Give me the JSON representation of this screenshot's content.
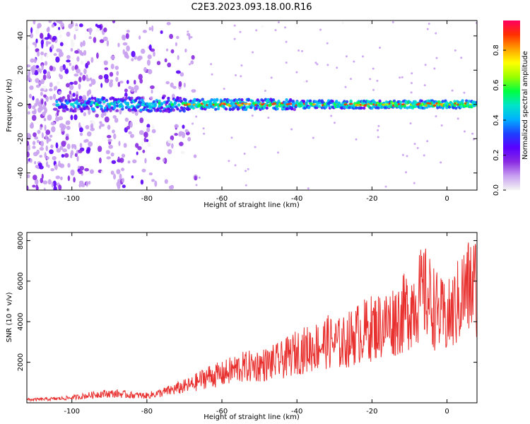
{
  "title": "C2E3.2023.093.18.00.R16",
  "colors": {
    "snr_line": "#e8302e",
    "colormap": [
      "#f4f4f4",
      "#c8a0f0",
      "#8a2be2",
      "#5a00ff",
      "#1e40ff",
      "#00b0ff",
      "#00e5c8",
      "#00ff40",
      "#9aff00",
      "#ffff00",
      "#ffa000",
      "#ff3000",
      "#ff0060"
    ]
  },
  "chart_data": [
    {
      "type": "heatmap",
      "xlabel": "Height of straight line (km)",
      "ylabel": "Frequency (Hz)",
      "xlim": [
        -112,
        8
      ],
      "ylim": [
        -50,
        49
      ],
      "xticks": [
        "-100",
        "-80",
        "-60",
        "-40",
        "-20",
        "0"
      ],
      "xtick_values": [
        -100,
        -80,
        -60,
        -40,
        -20,
        0
      ],
      "yticks": [
        "40",
        "20",
        "0",
        "-20",
        "-40"
      ],
      "ytick_values": [
        40,
        20,
        0,
        -20,
        -40
      ],
      "colorbar": {
        "label": "Normalized spectral amplitude",
        "ticks": [
          "0.0",
          "0.2",
          "0.4",
          "0.6",
          "0.8"
        ],
        "tick_values": [
          0.0,
          0.2,
          0.4,
          0.6,
          0.8
        ],
        "range": [
          0,
          0.97
        ]
      }
    },
    {
      "type": "line",
      "xlabel": "Height of straight line (km)",
      "ylabel": "SNR (10 * v/v)",
      "xlim": [
        -112,
        8
      ],
      "ylim": [
        0,
        8400
      ],
      "xticks": [
        "-100",
        "-80",
        "-60",
        "-40",
        "-20",
        "0"
      ],
      "xtick_values": [
        -100,
        -80,
        -60,
        -40,
        -20,
        0
      ],
      "yticks": [
        "2000",
        "4000",
        "6000",
        "8000"
      ],
      "ytick_values": [
        2000,
        4000,
        6000,
        8000
      ],
      "series": [
        {
          "x": [
            -112,
            -108,
            -104,
            -100,
            -96,
            -92,
            -88,
            -84,
            -80,
            -76,
            -72,
            -68,
            -64,
            -60,
            -56,
            -52,
            -48,
            -44,
            -40,
            -36,
            -32,
            -28,
            -24,
            -20,
            -16,
            -12,
            -8,
            -6,
            -4,
            -2,
            0,
            2,
            4,
            6,
            8
          ],
          "values": [
            150,
            170,
            200,
            250,
            350,
            450,
            450,
            380,
            350,
            500,
            700,
            900,
            1300,
            1400,
            1700,
            1800,
            1900,
            2100,
            2500,
            2700,
            3000,
            2900,
            3400,
            3700,
            3900,
            4300,
            5100,
            5400,
            4900,
            4300,
            4100,
            4600,
            5300,
            5700,
            5800
          ]
        }
      ]
    }
  ]
}
